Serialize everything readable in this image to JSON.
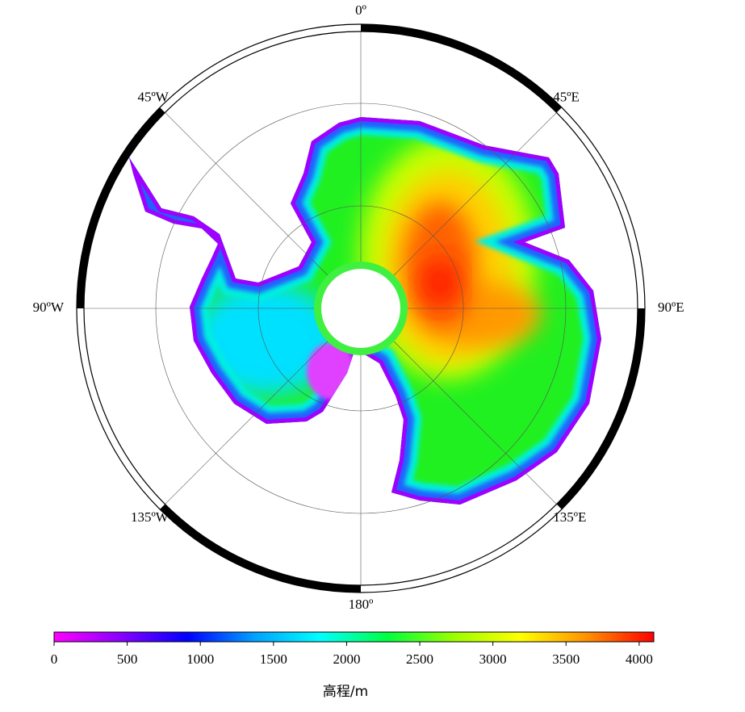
{
  "map": {
    "longitude_labels": [
      "0º",
      "45ºE",
      "90ºE",
      "135ºE",
      "180º",
      "135ºW",
      "90ºW",
      "45ºW"
    ]
  },
  "colorbar": {
    "label": "高程/m",
    "range": [
      0,
      4100
    ],
    "ticks": [
      0,
      500,
      1000,
      1500,
      2000,
      2500,
      3000,
      3500,
      4000
    ],
    "colors": [
      "#ff00ff",
      "#8a00ff",
      "#0000ff",
      "#00a0ff",
      "#00ffff",
      "#00ff40",
      "#9aff00",
      "#ffff00",
      "#ff9000",
      "#ff0000"
    ]
  }
}
